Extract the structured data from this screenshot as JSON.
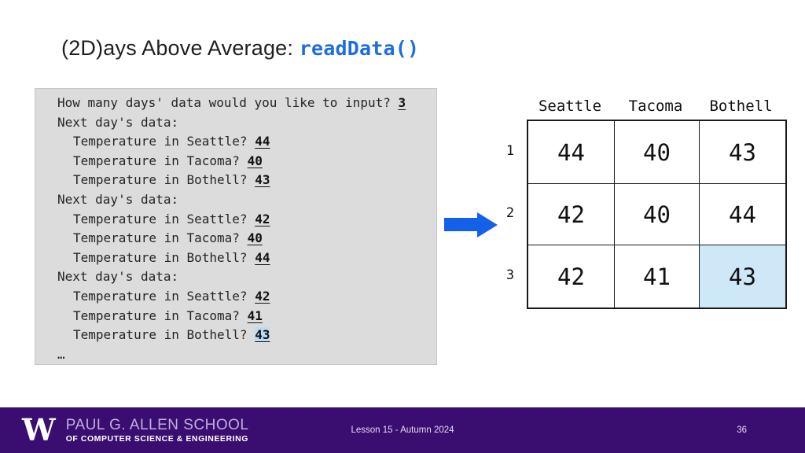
{
  "title": {
    "prefix": "(2D)ays Above Average: ",
    "code": "readData()"
  },
  "colors": {
    "title_code_blue": "#1d6ce1",
    "arrow_blue": "#1460e8",
    "console_background": "#dcdcdc",
    "console_highlight": "#bcdcf5",
    "table_highlight": "#cfe8f8",
    "footer_purple": "#3a0e70"
  },
  "console": {
    "lines": [
      {
        "text": "How many days' data would you like to input? ",
        "input": "3",
        "indent": 0
      },
      {
        "text": "Next day's data:",
        "indent": 0
      },
      {
        "text": "Temperature in Seattle? ",
        "input": "44",
        "indent": 1
      },
      {
        "text": "Temperature in Tacoma? ",
        "input": "40",
        "indent": 1
      },
      {
        "text": "Temperature in Bothell? ",
        "input": "43",
        "indent": 1
      },
      {
        "text": "Next day's data:",
        "indent": 0
      },
      {
        "text": "Temperature in Seattle? ",
        "input": "42",
        "indent": 1
      },
      {
        "text": "Temperature in Tacoma? ",
        "input": "40",
        "indent": 1
      },
      {
        "text": "Temperature in Bothell? ",
        "input": "44",
        "indent": 1
      },
      {
        "text": "Next day's data:",
        "indent": 0
      },
      {
        "text": "Temperature in Seattle? ",
        "input": "42",
        "indent": 1
      },
      {
        "text": "Temperature in Tacoma? ",
        "input": "41",
        "indent": 1
      },
      {
        "text": "Temperature in Bothell? ",
        "input": "43",
        "indent": 1,
        "highlight": true
      },
      {
        "text": "…",
        "indent": 0
      }
    ]
  },
  "table": {
    "columns": [
      "Seattle",
      "Tacoma",
      "Bothell"
    ],
    "rows": [
      {
        "label": "1",
        "values": [
          "44",
          "40",
          "43"
        ]
      },
      {
        "label": "2",
        "values": [
          "42",
          "40",
          "44"
        ]
      },
      {
        "label": "3",
        "values": [
          "42",
          "41",
          "43"
        ]
      }
    ],
    "highlighted_cell": {
      "row": 2,
      "col": 2
    }
  },
  "footer": {
    "logo_w": "W",
    "school_line1": "PAUL G. ALLEN SCHOOL",
    "school_line2": "OF COMPUTER SCIENCE & ENGINEERING",
    "lesson": "Lesson 15 - Autumn 2024",
    "page": "36"
  }
}
